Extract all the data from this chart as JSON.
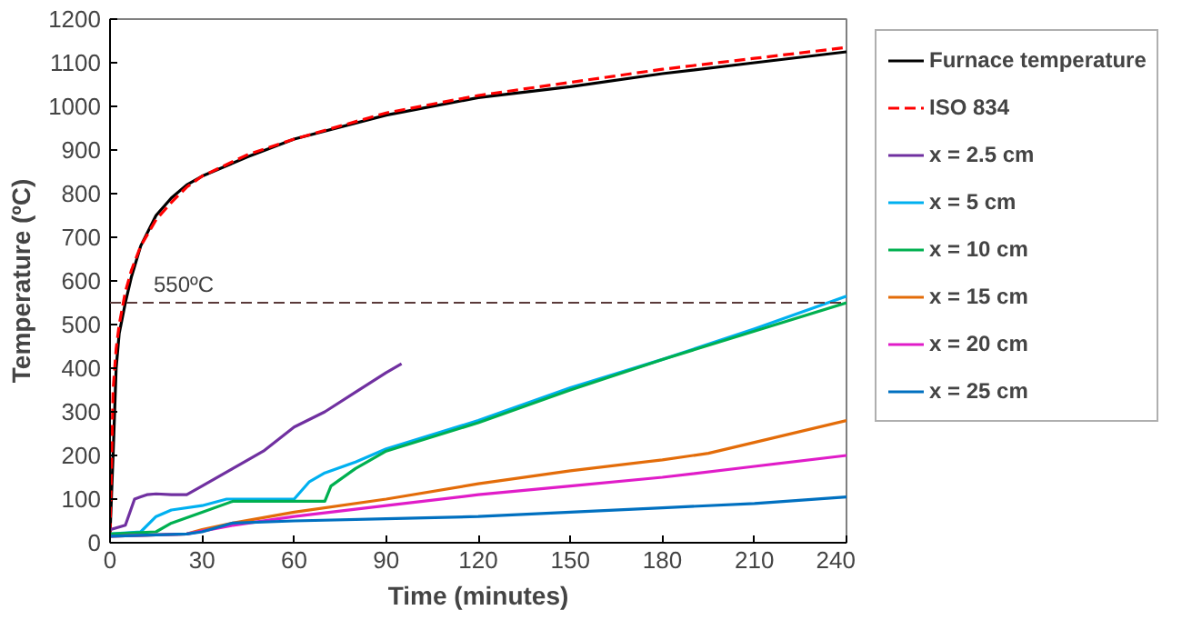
{
  "chart_data": {
    "type": "line",
    "xlabel": "Time (minutes)",
    "ylabel": "Temperature (ºC)",
    "xlim": [
      0,
      240
    ],
    "xticks": [
      0,
      30,
      60,
      90,
      120,
      150,
      180,
      210,
      240
    ],
    "ylim": [
      0,
      1200
    ],
    "yticks": [
      0,
      100,
      200,
      300,
      400,
      500,
      600,
      700,
      800,
      900,
      1000,
      1100,
      1200
    ],
    "grid": false,
    "legend": "right",
    "marker": "none",
    "ref_lines": [
      {
        "axis": "y",
        "value": 550,
        "label": "550ºC",
        "color": "#5a3a3a",
        "line_style": "dashed"
      }
    ],
    "series": [
      {
        "name": "Furnace temperature",
        "color": "#000000",
        "x": [
          0,
          1,
          2,
          3,
          5,
          7,
          10,
          15,
          20,
          25,
          30,
          45,
          60,
          90,
          120,
          150,
          180,
          210,
          240
        ],
        "values": [
          20,
          200,
          400,
          480,
          550,
          610,
          680,
          750,
          790,
          820,
          840,
          885,
          925,
          980,
          1020,
          1045,
          1075,
          1100,
          1125
        ]
      },
      {
        "name": "ISO 834",
        "color": "#ff0000",
        "line_style": "dashed",
        "x": [
          0,
          1,
          2,
          3,
          5,
          7,
          10,
          15,
          20,
          25,
          30,
          45,
          60,
          90,
          120,
          150,
          180,
          210,
          240
        ],
        "values": [
          20,
          350,
          445,
          500,
          575,
          625,
          680,
          740,
          780,
          815,
          840,
          890,
          925,
          985,
          1025,
          1055,
          1085,
          1110,
          1135
        ]
      },
      {
        "name": "x = 2.5 cm",
        "color": "#7030a0",
        "x": [
          0,
          5,
          8,
          10,
          12,
          15,
          20,
          25,
          30,
          40,
          50,
          60,
          70,
          80,
          90,
          95
        ],
        "values": [
          30,
          40,
          100,
          105,
          110,
          112,
          110,
          110,
          130,
          170,
          210,
          265,
          300,
          345,
          390,
          410
        ]
      },
      {
        "name": "x = 5 cm",
        "color": "#00b0f0",
        "x": [
          0,
          10,
          15,
          20,
          30,
          38,
          50,
          60,
          65,
          70,
          80,
          90,
          120,
          150,
          180,
          210,
          240
        ],
        "values": [
          20,
          25,
          60,
          75,
          85,
          100,
          100,
          100,
          140,
          160,
          185,
          215,
          280,
          355,
          420,
          490,
          565
        ]
      },
      {
        "name": "x = 10 cm",
        "color": "#00b050",
        "x": [
          0,
          15,
          20,
          30,
          40,
          50,
          60,
          70,
          72,
          80,
          90,
          120,
          150,
          180,
          210,
          240
        ],
        "values": [
          20,
          25,
          45,
          70,
          95,
          95,
          95,
          95,
          130,
          170,
          210,
          275,
          350,
          420,
          485,
          550
        ]
      },
      {
        "name": "x = 15 cm",
        "color": "#e36c09",
        "x": [
          0,
          25,
          30,
          40,
          60,
          90,
          120,
          150,
          180,
          195,
          210,
          240
        ],
        "values": [
          15,
          20,
          30,
          45,
          70,
          100,
          135,
          165,
          190,
          205,
          230,
          280
        ]
      },
      {
        "name": "x = 20 cm",
        "color": "#e01cc8",
        "x": [
          0,
          25,
          40,
          60,
          90,
          120,
          150,
          180,
          210,
          240
        ],
        "values": [
          15,
          20,
          40,
          60,
          85,
          110,
          130,
          150,
          175,
          200
        ]
      },
      {
        "name": "x = 25 cm",
        "color": "#0070c0",
        "x": [
          0,
          25,
          30,
          40,
          60,
          90,
          120,
          150,
          180,
          210,
          240
        ],
        "values": [
          15,
          20,
          25,
          45,
          50,
          55,
          60,
          70,
          80,
          90,
          105
        ]
      }
    ]
  }
}
